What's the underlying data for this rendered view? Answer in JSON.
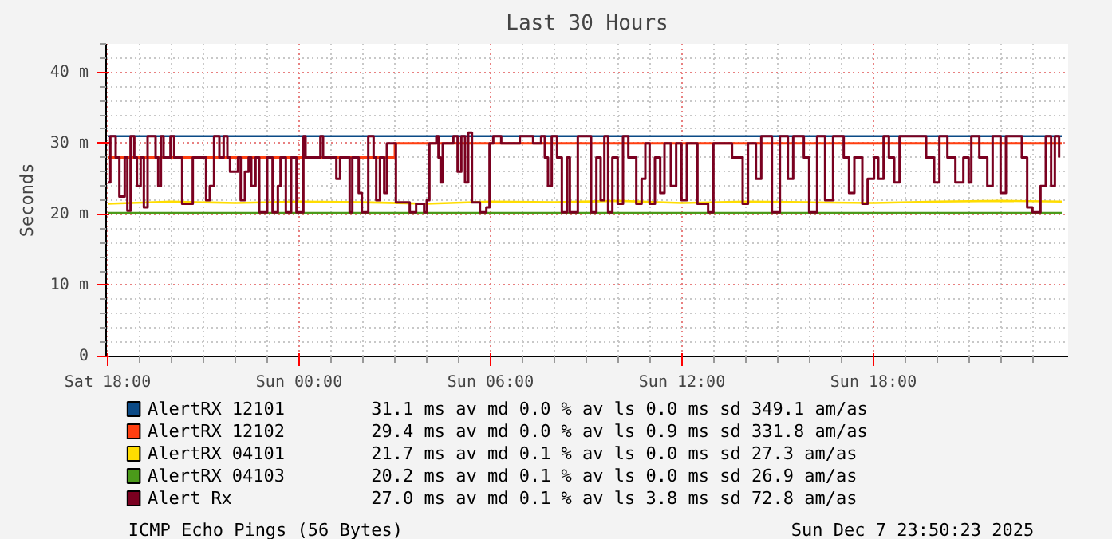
{
  "chart_data": {
    "type": "line",
    "title": "Last 30 Hours",
    "ylabel": "Seconds",
    "xlim": [
      "2025-12-06T17:57",
      "2025-12-08T00:06"
    ],
    "ylim": [
      0,
      44
    ],
    "xticks": [
      {
        "value": "2025-12-06T18:00",
        "label": "Sat 18:00"
      },
      {
        "value": "2025-12-07T00:00",
        "label": "Sun 00:00"
      },
      {
        "value": "2025-12-07T06:00",
        "label": "Sun 06:00"
      },
      {
        "value": "2025-12-07T12:00",
        "label": "Sun 12:00"
      },
      {
        "value": "2025-12-07T18:00",
        "label": "Sun 18:00"
      }
    ],
    "yticks": [
      0,
      {
        "value": 10,
        "label": "10 m"
      },
      {
        "value": 20,
        "label": "20 m"
      },
      {
        "value": 30,
        "label": "30 m"
      },
      {
        "value": 40,
        "label": "40 m"
      }
    ],
    "grid": true,
    "legend": "bottom",
    "line_style": "solid",
    "series": [
      {
        "name": "AlertRX 12101",
        "color": "#0b4a86",
        "x": [
          "2025-12-06T18:00",
          "2025-12-07T23:54"
        ],
        "values": [
          31,
          31
        ]
      },
      {
        "name": "AlertRX 12102",
        "color": "#ff3f10",
        "type": "step",
        "x": [
          "2025-12-06T18:00",
          "2025-12-07T03:00",
          "2025-12-07T23:54"
        ],
        "values": [
          28,
          30,
          30
        ]
      },
      {
        "name": "AlertRX 04101",
        "color": "#ffdd00",
        "x": [
          "2025-12-06T18:00",
          "2025-12-06T20:00",
          "2025-12-06T22:00",
          "2025-12-07T00:00",
          "2025-12-07T02:00",
          "2025-12-07T04:00",
          "2025-12-07T06:00",
          "2025-12-07T08:00",
          "2025-12-07T10:00",
          "2025-12-07T12:00",
          "2025-12-07T14:00",
          "2025-12-07T16:00",
          "2025-12-07T18:00",
          "2025-12-07T20:00",
          "2025-12-07T22:00",
          "2025-12-07T23:54"
        ],
        "values": [
          21.5,
          21.8,
          21.6,
          21.8,
          21.7,
          21.5,
          21.8,
          21.7,
          21.9,
          21.6,
          21.8,
          21.7,
          21.6,
          21.8,
          21.9,
          21.8
        ]
      },
      {
        "name": "AlertRX 04103",
        "color": "#4b9a1a",
        "x": [
          "2025-12-06T18:00",
          "2025-12-07T23:54"
        ],
        "values": [
          20.2,
          20.2
        ]
      },
      {
        "name": "Alert Rx",
        "color": "#7a0020",
        "type": "step",
        "x": [
          "2025-12-06T18:00",
          "2025-12-06T18:05",
          "2025-12-06T18:15",
          "2025-12-06T18:22",
          "2025-12-06T18:32",
          "2025-12-06T18:37",
          "2025-12-06T18:43",
          "2025-12-06T18:50",
          "2025-12-06T18:55",
          "2025-12-06T19:02",
          "2025-12-06T19:08",
          "2025-12-06T19:15",
          "2025-12-06T19:30",
          "2025-12-06T19:35",
          "2025-12-06T19:40",
          "2025-12-06T19:45",
          "2025-12-06T19:58",
          "2025-12-06T20:05",
          "2025-12-06T20:20",
          "2025-12-06T20:40",
          "2025-12-06T21:05",
          "2025-12-06T21:12",
          "2025-12-06T21:20",
          "2025-12-06T21:30",
          "2025-12-06T21:38",
          "2025-12-06T21:45",
          "2025-12-06T21:50",
          "2025-12-06T22:05",
          "2025-12-06T22:10",
          "2025-12-06T22:18",
          "2025-12-06T22:25",
          "2025-12-06T22:30",
          "2025-12-06T22:38",
          "2025-12-06T22:45",
          "2025-12-06T23:00",
          "2025-12-06T23:10",
          "2025-12-06T23:20",
          "2025-12-06T23:25",
          "2025-12-06T23:35",
          "2025-12-06T23:45",
          "2025-12-06T23:55",
          "2025-12-07T00:08",
          "2025-12-07T00:12",
          "2025-12-07T00:40",
          "2025-12-07T00:45",
          "2025-12-07T01:10",
          "2025-12-07T01:17",
          "2025-12-07T01:35",
          "2025-12-07T01:40",
          "2025-12-07T01:52",
          "2025-12-07T01:58",
          "2025-12-07T02:10",
          "2025-12-07T02:20",
          "2025-12-07T02:25",
          "2025-12-07T02:32",
          "2025-12-07T02:40",
          "2025-12-07T02:45",
          "2025-12-07T03:02",
          "2025-12-07T03:28",
          "2025-12-07T03:40",
          "2025-12-07T03:55",
          "2025-12-07T04:00",
          "2025-12-07T04:05",
          "2025-12-07T04:18",
          "2025-12-07T04:22",
          "2025-12-07T04:26",
          "2025-12-07T04:30",
          "2025-12-07T04:50",
          "2025-12-07T04:58",
          "2025-12-07T05:05",
          "2025-12-07T05:12",
          "2025-12-07T05:18",
          "2025-12-07T05:25",
          "2025-12-07T05:40",
          "2025-12-07T05:52",
          "2025-12-07T05:58",
          "2025-12-07T06:05",
          "2025-12-07T06:20",
          "2025-12-07T06:55",
          "2025-12-07T07:20",
          "2025-12-07T07:35",
          "2025-12-07T07:42",
          "2025-12-07T07:48",
          "2025-12-07T07:55",
          "2025-12-07T08:05",
          "2025-12-07T08:14",
          "2025-12-07T08:24",
          "2025-12-07T08:29",
          "2025-12-07T08:44",
          "2025-12-07T09:09",
          "2025-12-07T09:19",
          "2025-12-07T09:27",
          "2025-12-07T09:34",
          "2025-12-07T09:41",
          "2025-12-07T09:49",
          "2025-12-07T09:59",
          "2025-12-07T10:09",
          "2025-12-07T10:19",
          "2025-12-07T10:34",
          "2025-12-07T10:44",
          "2025-12-07T10:51",
          "2025-12-07T10:59",
          "2025-12-07T11:09",
          "2025-12-07T11:19",
          "2025-12-07T11:27",
          "2025-12-07T11:39",
          "2025-12-07T11:49",
          "2025-12-07T11:59",
          "2025-12-07T12:09",
          "2025-12-07T12:29",
          "2025-12-07T12:49",
          "2025-12-07T12:59",
          "2025-12-07T13:34",
          "2025-12-07T13:54",
          "2025-12-07T14:04",
          "2025-12-07T14:19",
          "2025-12-07T14:29",
          "2025-12-07T14:49",
          "2025-12-07T15:04",
          "2025-12-07T15:19",
          "2025-12-07T15:29",
          "2025-12-07T15:49",
          "2025-12-07T15:59",
          "2025-12-07T16:14",
          "2025-12-07T16:29",
          "2025-12-07T16:44",
          "2025-12-07T17:04",
          "2025-12-07T17:14",
          "2025-12-07T17:24",
          "2025-12-07T17:39",
          "2025-12-07T17:49",
          "2025-12-07T18:01",
          "2025-12-07T18:09",
          "2025-12-07T18:19",
          "2025-12-07T18:29",
          "2025-12-07T18:39",
          "2025-12-07T18:49",
          "2025-12-07T19:39",
          "2025-12-07T19:54",
          "2025-12-07T20:04",
          "2025-12-07T20:19",
          "2025-12-07T20:34",
          "2025-12-07T20:49",
          "2025-12-07T20:59",
          "2025-12-07T21:04",
          "2025-12-07T21:19",
          "2025-12-07T21:34",
          "2025-12-07T21:44",
          "2025-12-07T21:59",
          "2025-12-07T22:09",
          "2025-12-07T22:39",
          "2025-12-07T22:49",
          "2025-12-07T22:59",
          "2025-12-07T23:14",
          "2025-12-07T23:24",
          "2025-12-07T23:34",
          "2025-12-07T23:41",
          "2025-12-07T23:49"
        ],
        "values": [
          24.5,
          31,
          28,
          22.5,
          28,
          20.5,
          31,
          28,
          24,
          28,
          21,
          31,
          28,
          24,
          31,
          28,
          31,
          28,
          21.5,
          28,
          22,
          24,
          31,
          28,
          31,
          28,
          26,
          28,
          22,
          26,
          28,
          24,
          28,
          20.3,
          28,
          20.3,
          24,
          28,
          20.3,
          28,
          20.3,
          31,
          28,
          31,
          28,
          25,
          28,
          20.3,
          28,
          23,
          20.3,
          31,
          28,
          22,
          28,
          23,
          30,
          21.7,
          20.3,
          21.5,
          20.3,
          22,
          30,
          31,
          28,
          24.5,
          30,
          31,
          26,
          31,
          24.5,
          31.5,
          21.7,
          20.3,
          21,
          30,
          31,
          30,
          31,
          30,
          31,
          28,
          24,
          31,
          28,
          20.3,
          28,
          20.3,
          31,
          20.3,
          28,
          22,
          31,
          20.3,
          28,
          21.5,
          31,
          28,
          21.5,
          25,
          30,
          21.5,
          28,
          23,
          30,
          24,
          30,
          22,
          30,
          21.5,
          20.3,
          30,
          28,
          21.5,
          30,
          25,
          31,
          20.3,
          31,
          25,
          31,
          28,
          20.3,
          31,
          22,
          31,
          28,
          23,
          28,
          21.5,
          25,
          28,
          25,
          31,
          28,
          24.5,
          31,
          28,
          24.5,
          31,
          28,
          24.5,
          28,
          24.5,
          31,
          28,
          24,
          31,
          23,
          31,
          28,
          21,
          20.3,
          24,
          31,
          24,
          31,
          28
        ]
      }
    ],
    "annotations": [
      "31.1 ms av md 0.0 % av ls 0.0 ms sd 349.1 am/as",
      "29.4 ms av md 0.0 % av ls 0.9 ms sd 331.8 am/as",
      "21.7 ms av md 0.1 % av ls 0.0 ms sd 27.3 am/as",
      "20.2 ms av md 0.1 % av ls 0.0 ms sd 26.9 am/as",
      "27.0 ms av md 0.1 % av ls 3.8 ms sd 72.8 am/as",
      "ICMP Echo Pings (56 Bytes)",
      "Sun Dec  7 23:50:23 2025"
    ]
  }
}
